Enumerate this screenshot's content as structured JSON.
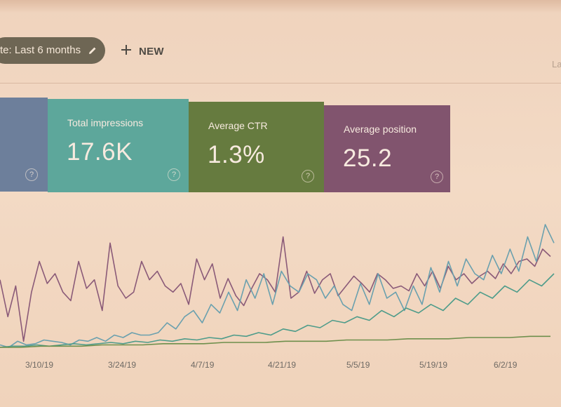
{
  "toolbar": {
    "date_filter_label": "te: Last 6 months",
    "new_label": "NEW",
    "last_label": "La"
  },
  "cards": [
    {
      "id": "clicks",
      "label": "",
      "value": "",
      "color": "#6d7f9b"
    },
    {
      "id": "impressions",
      "label": "Total impressions",
      "value": "17.6K",
      "color": "#5da79b"
    },
    {
      "id": "ctr",
      "label": "Average CTR",
      "value": "1.3%",
      "color": "#667b3f"
    },
    {
      "id": "position",
      "label": "Average position",
      "value": "25.2",
      "color": "#81546e"
    }
  ],
  "help_glyph": "?",
  "chart_data": {
    "type": "line",
    "x_tick_labels": [
      "3/10/19",
      "3/24/19",
      "4/7/19",
      "4/21/19",
      "5/5/19",
      "5/19/19",
      "6/2/19"
    ],
    "series": [
      {
        "id": "position",
        "color": "#8a5a78",
        "values": [
          0.55,
          0.25,
          0.5,
          0.05,
          0.45,
          0.7,
          0.52,
          0.6,
          0.45,
          0.38,
          0.7,
          0.48,
          0.55,
          0.3,
          0.85,
          0.5,
          0.4,
          0.45,
          0.7,
          0.55,
          0.62,
          0.5,
          0.45,
          0.52,
          0.35,
          0.72,
          0.55,
          0.68,
          0.4,
          0.56,
          0.42,
          0.34,
          0.48,
          0.6,
          0.55,
          0.45,
          0.9,
          0.4,
          0.45,
          0.62,
          0.44,
          0.55,
          0.6,
          0.42,
          0.5,
          0.58,
          0.52,
          0.45,
          0.6,
          0.55,
          0.48,
          0.5,
          0.46,
          0.6,
          0.5,
          0.62,
          0.48,
          0.66,
          0.55,
          0.6,
          0.52,
          0.58,
          0.62,
          0.56,
          0.68,
          0.6,
          0.7,
          0.72,
          0.66,
          0.8,
          0.74
        ]
      },
      {
        "id": "ctr",
        "color": "#6aa0ae",
        "values": [
          0.02,
          0.0,
          0.05,
          0.02,
          0.03,
          0.06,
          0.05,
          0.04,
          0.02,
          0.06,
          0.05,
          0.08,
          0.05,
          0.1,
          0.08,
          0.12,
          0.1,
          0.1,
          0.12,
          0.2,
          0.15,
          0.25,
          0.3,
          0.2,
          0.35,
          0.28,
          0.45,
          0.3,
          0.55,
          0.4,
          0.6,
          0.35,
          0.62,
          0.5,
          0.45,
          0.6,
          0.55,
          0.4,
          0.5,
          0.35,
          0.3,
          0.52,
          0.35,
          0.6,
          0.4,
          0.45,
          0.3,
          0.5,
          0.35,
          0.65,
          0.45,
          0.7,
          0.5,
          0.72,
          0.6,
          0.55,
          0.75,
          0.6,
          0.8,
          0.62,
          0.9,
          0.7,
          1.0,
          0.85
        ]
      },
      {
        "id": "clicks",
        "color": "#4e9c8a",
        "values": [
          0.0,
          0.01,
          0.01,
          0.02,
          0.01,
          0.02,
          0.03,
          0.02,
          0.03,
          0.04,
          0.03,
          0.05,
          0.04,
          0.06,
          0.05,
          0.07,
          0.06,
          0.08,
          0.07,
          0.1,
          0.09,
          0.12,
          0.1,
          0.15,
          0.13,
          0.18,
          0.16,
          0.22,
          0.2,
          0.25,
          0.22,
          0.3,
          0.25,
          0.32,
          0.28,
          0.35,
          0.3,
          0.4,
          0.35,
          0.45,
          0.4,
          0.5,
          0.45,
          0.55,
          0.5,
          0.6
        ]
      },
      {
        "id": "impressions",
        "color": "#6e8f4c",
        "values": [
          0.0,
          0.0,
          0.01,
          0.01,
          0.01,
          0.02,
          0.02,
          0.02,
          0.03,
          0.03,
          0.03,
          0.04,
          0.04,
          0.04,
          0.05,
          0.05,
          0.05,
          0.06,
          0.06,
          0.06,
          0.07,
          0.07,
          0.07,
          0.08,
          0.08,
          0.08,
          0.09,
          0.09
        ]
      }
    ]
  }
}
